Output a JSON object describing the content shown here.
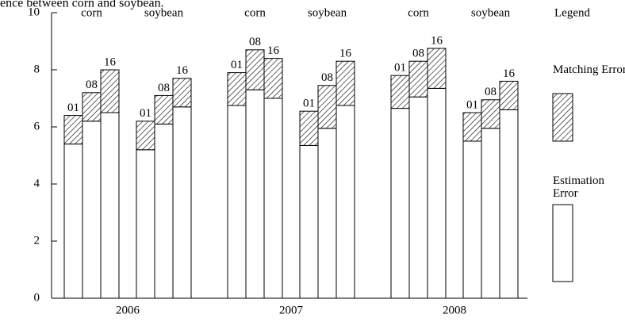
{
  "chart_data": {
    "type": "stacked-bar",
    "title": "ence between corn and soybean.",
    "legend_title": "Legend",
    "years": [
      "2006",
      "2007",
      "2008"
    ],
    "crops": [
      "corn",
      "soybean",
      "corn",
      "soybean",
      "corn",
      "soybean"
    ],
    "categories": [
      "01",
      "08",
      "16",
      "01",
      "08",
      "16",
      "01",
      "08",
      "16",
      "01",
      "08",
      "16",
      "01",
      "08",
      "16",
      "01",
      "08",
      "16"
    ],
    "series": [
      {
        "name": "Estimation Error",
        "color": "#ffffff",
        "values": [
          5.4,
          6.2,
          6.5,
          5.2,
          6.1,
          6.7,
          6.75,
          7.3,
          7.0,
          5.35,
          5.95,
          6.75,
          6.65,
          7.05,
          7.35,
          5.5,
          5.95,
          6.6
        ]
      },
      {
        "name": "Matching Error",
        "color": "hatch",
        "values": [
          1.0,
          1.0,
          1.5,
          1.0,
          1.0,
          1.0,
          1.15,
          1.4,
          1.4,
          1.2,
          1.5,
          1.55,
          1.15,
          1.25,
          1.4,
          1.0,
          1.0,
          1.0
        ]
      }
    ],
    "ylim": [
      0,
      10
    ],
    "yticks": [
      0,
      2,
      4,
      6,
      8,
      10
    ]
  }
}
